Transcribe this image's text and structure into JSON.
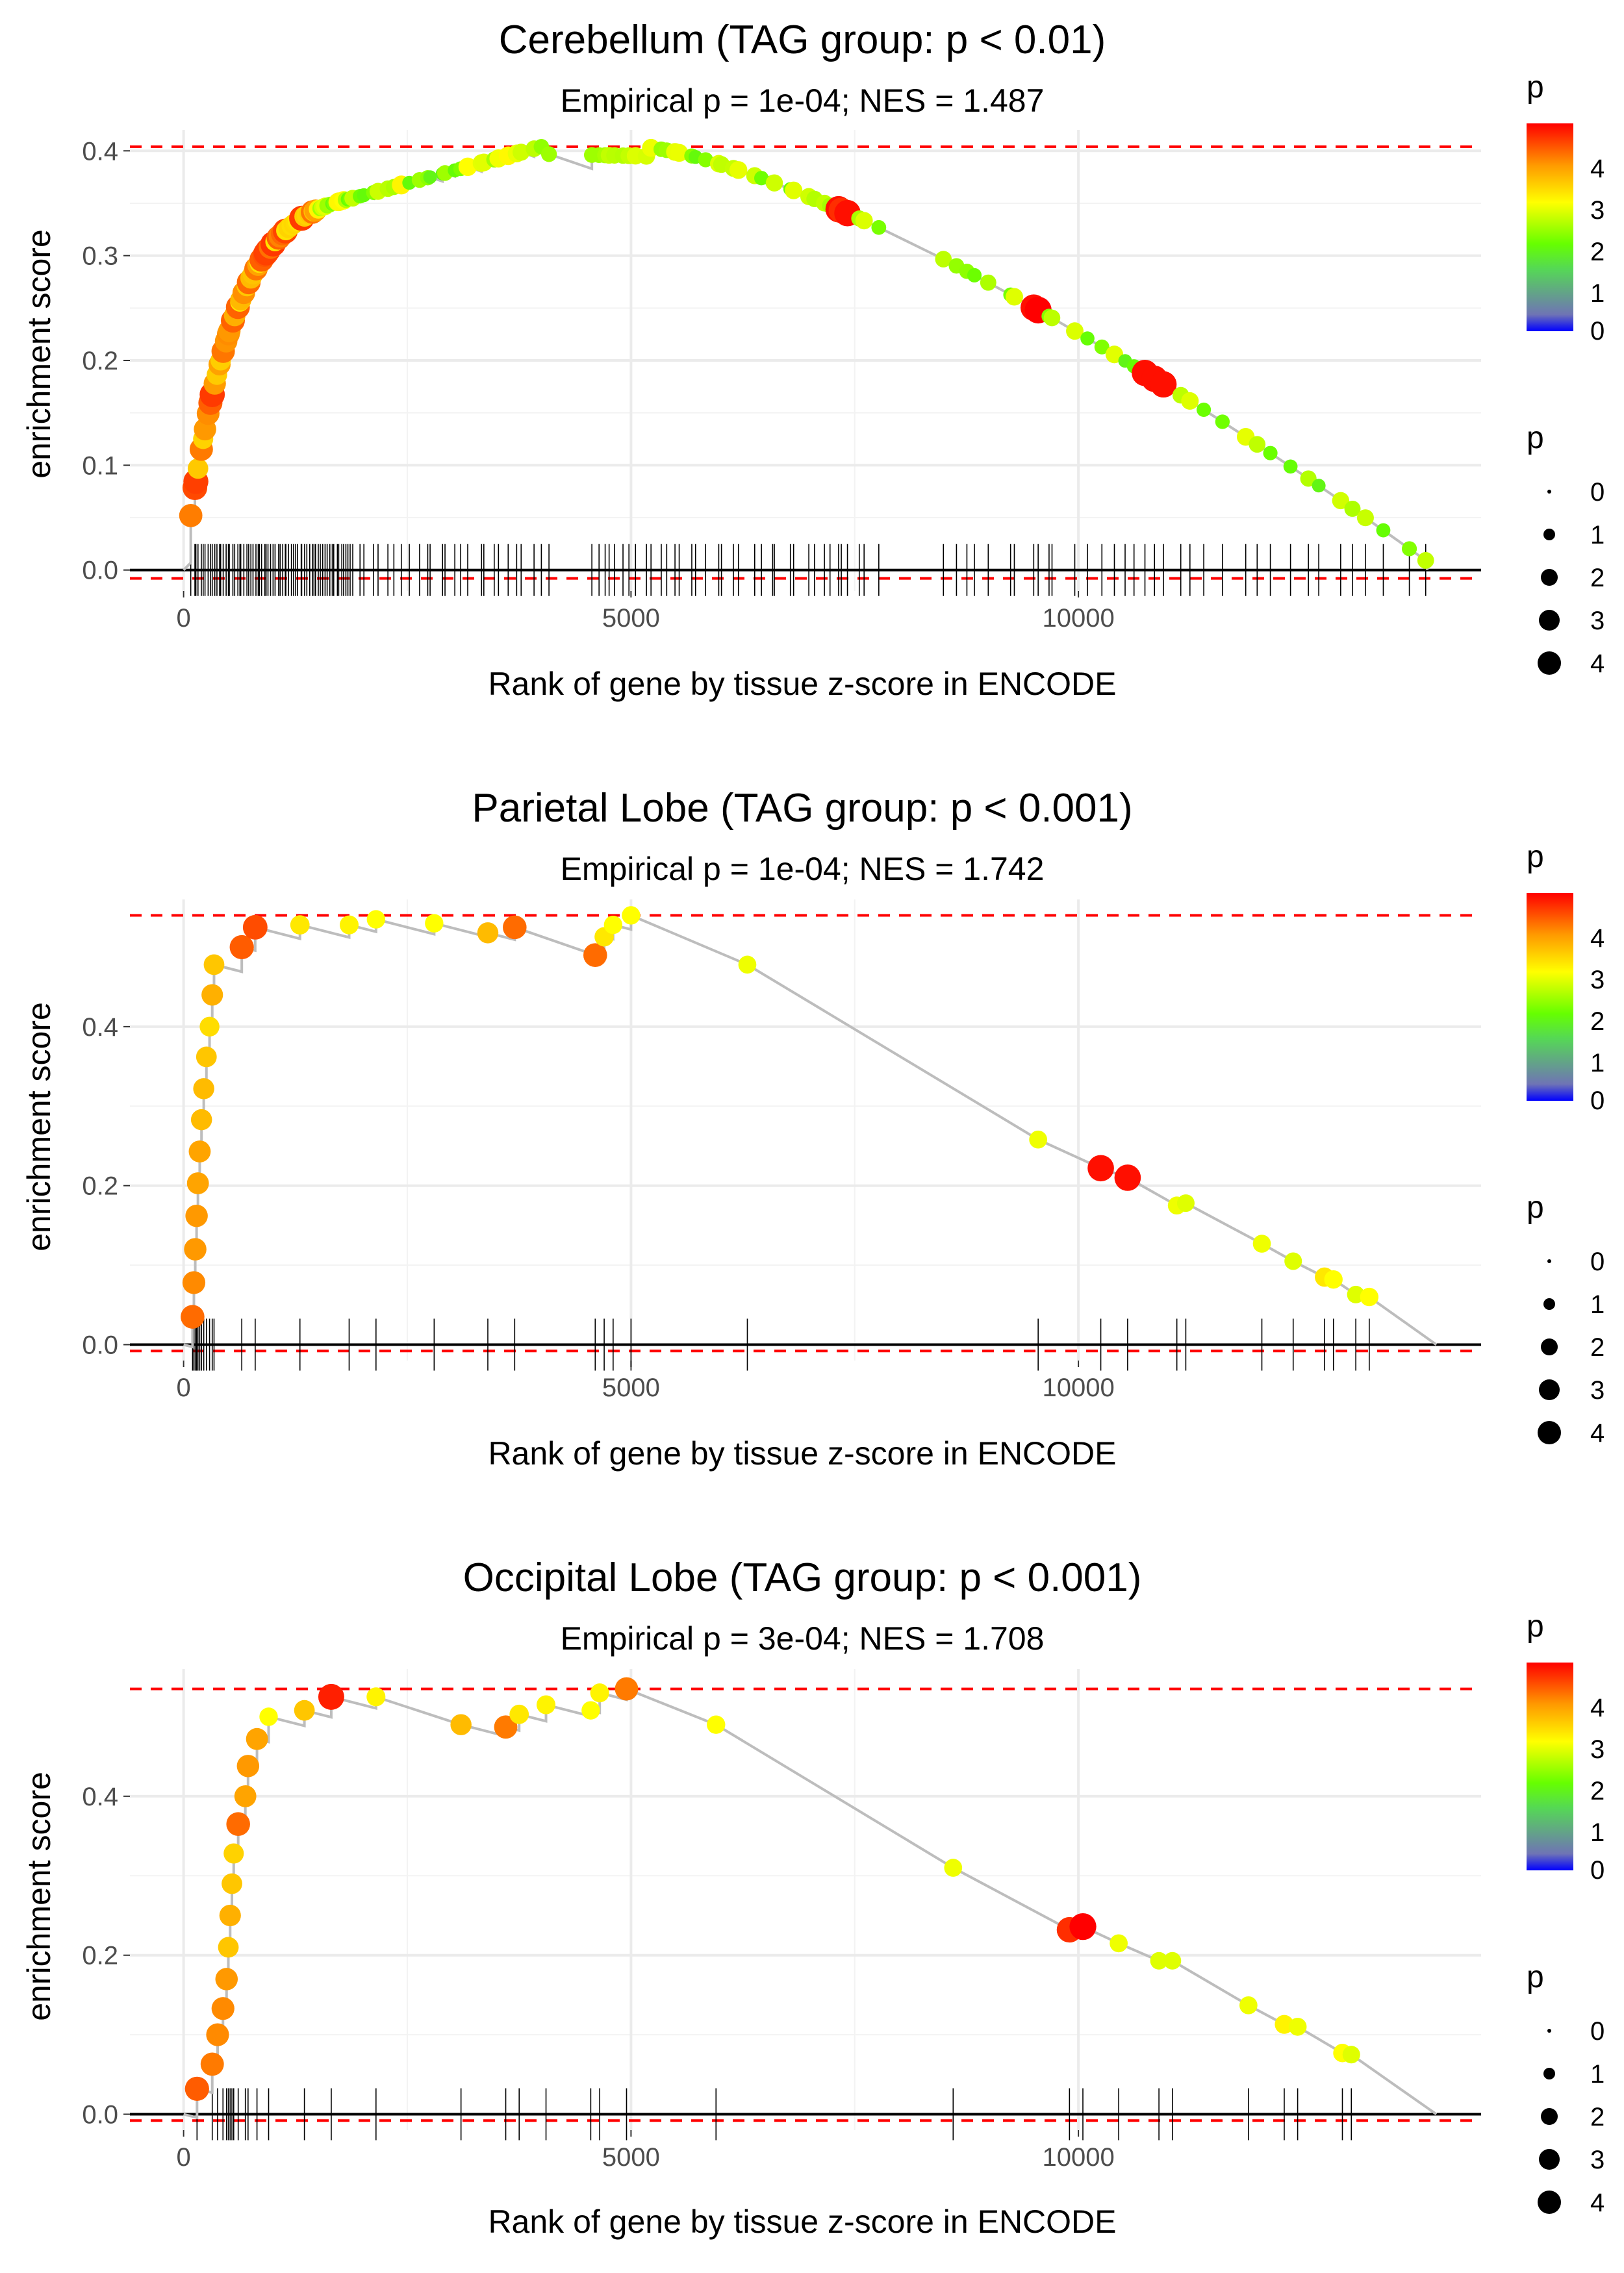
{
  "chart_data": [
    {
      "type": "line",
      "title": "Cerebellum (TAG group: p < 0.01)",
      "subtitle": "Empirical p = 1e-04; NES = 1.487",
      "xlabel": "Rank of gene by tissue z-score in ENCODE",
      "ylabel": "enrichment score",
      "xlim": [
        -600,
        14500
      ],
      "ylim": [
        -0.02,
        0.42
      ],
      "x_ticks": [
        0,
        5000,
        10000
      ],
      "x_tick_labels": [
        "0",
        "5000",
        "10000"
      ],
      "y_ticks": [
        0,
        0.1,
        0.2,
        0.3,
        0.4
      ],
      "y_tick_labels": [
        "0.0",
        "0.1",
        "0.2",
        "0.3",
        "0.4"
      ],
      "max_es": 0.404,
      "min_es": -0.008,
      "gene_set_size": 160,
      "total_genes": 13900,
      "legends": {
        "color": {
          "title": "p",
          "labels": [
            "4",
            "3",
            "2",
            "1",
            "0"
          ],
          "range": [
            0,
            4.9
          ]
        },
        "size": {
          "title": "p",
          "labels": [
            "0",
            "1",
            "2",
            "3",
            "4"
          ]
        }
      }
    },
    {
      "type": "line",
      "title": "Parietal Lobe (TAG group: p < 0.001)",
      "subtitle": "Empirical p = 1e-04; NES = 1.742",
      "xlabel": "Rank of gene by tissue z-score in ENCODE",
      "ylabel": "enrichment score",
      "xlim": [
        -600,
        14500
      ],
      "ylim": [
        -0.02,
        0.56
      ],
      "x_ticks": [
        0,
        5000,
        10000
      ],
      "x_tick_labels": [
        "0",
        "5000",
        "10000"
      ],
      "y_ticks": [
        0,
        0.2,
        0.4
      ],
      "y_tick_labels": [
        "0.0",
        "0.2",
        "0.4"
      ],
      "max_es": 0.54,
      "min_es": -0.008,
      "total_genes": 14000,
      "hits": [
        {
          "rank": 100,
          "es": 0.035,
          "p": 4.2
        },
        {
          "rank": 115,
          "es": 0.078,
          "p": 4.0
        },
        {
          "rank": 130,
          "es": 0.12,
          "p": 3.9
        },
        {
          "rank": 145,
          "es": 0.162,
          "p": 3.9
        },
        {
          "rank": 160,
          "es": 0.203,
          "p": 3.8
        },
        {
          "rank": 180,
          "es": 0.243,
          "p": 3.8
        },
        {
          "rank": 200,
          "es": 0.283,
          "p": 3.6
        },
        {
          "rank": 225,
          "es": 0.322,
          "p": 3.6
        },
        {
          "rank": 255,
          "es": 0.362,
          "p": 3.5
        },
        {
          "rank": 290,
          "es": 0.4,
          "p": 3.3
        },
        {
          "rank": 320,
          "es": 0.44,
          "p": 3.7
        },
        {
          "rank": 340,
          "es": 0.478,
          "p": 3.5
        },
        {
          "rank": 650,
          "es": 0.5,
          "p": 4.3
        },
        {
          "rank": 800,
          "es": 0.525,
          "p": 4.4
        },
        {
          "rank": 1300,
          "es": 0.528,
          "p": 3.2
        },
        {
          "rank": 1850,
          "es": 0.528,
          "p": 3.1
        },
        {
          "rank": 2150,
          "es": 0.535,
          "p": 3.0
        },
        {
          "rank": 2800,
          "es": 0.53,
          "p": 3.0
        },
        {
          "rank": 3400,
          "es": 0.518,
          "p": 3.6
        },
        {
          "rank": 3700,
          "es": 0.525,
          "p": 4.2
        },
        {
          "rank": 4600,
          "es": 0.49,
          "p": 4.2
        },
        {
          "rank": 4700,
          "es": 0.513,
          "p": 3.2
        },
        {
          "rank": 4800,
          "es": 0.528,
          "p": 3.0
        },
        {
          "rank": 5000,
          "es": 0.54,
          "p": 3.0
        },
        {
          "rank": 6300,
          "es": 0.478,
          "p": 2.9
        },
        {
          "rank": 9550,
          "es": 0.258,
          "p": 2.9
        },
        {
          "rank": 10250,
          "es": 0.222,
          "p": 4.8
        },
        {
          "rank": 10550,
          "es": 0.21,
          "p": 4.8
        },
        {
          "rank": 11100,
          "es": 0.175,
          "p": 2.9
        },
        {
          "rank": 11200,
          "es": 0.178,
          "p": 2.8
        },
        {
          "rank": 12050,
          "es": 0.127,
          "p": 2.9
        },
        {
          "rank": 12400,
          "es": 0.105,
          "p": 2.8
        },
        {
          "rank": 12750,
          "es": 0.085,
          "p": 3.2
        },
        {
          "rank": 12850,
          "es": 0.082,
          "p": 3.0
        },
        {
          "rank": 13100,
          "es": 0.063,
          "p": 2.8
        },
        {
          "rank": 13250,
          "es": 0.06,
          "p": 3.0
        }
      ],
      "legends": {
        "color": {
          "title": "p",
          "labels": [
            "4",
            "3",
            "2",
            "1",
            "0"
          ],
          "range": [
            0,
            4.9
          ]
        },
        "size": {
          "title": "p",
          "labels": [
            "0",
            "1",
            "2",
            "3",
            "4"
          ]
        }
      }
    },
    {
      "type": "line",
      "title": "Occipital Lobe (TAG group: p < 0.001)",
      "subtitle": "Empirical p = 3e-04; NES = 1.708",
      "xlabel": "Rank of gene by tissue z-score in ENCODE",
      "ylabel": "enrichment score",
      "xlim": [
        -600,
        14500
      ],
      "ylim": [
        -0.02,
        0.56
      ],
      "x_ticks": [
        0,
        5000,
        10000
      ],
      "x_tick_labels": [
        "0",
        "5000",
        "10000"
      ],
      "y_ticks": [
        0,
        0.2,
        0.4
      ],
      "y_tick_labels": [
        "0.0",
        "0.2",
        "0.4"
      ],
      "max_es": 0.535,
      "min_es": -0.008,
      "total_genes": 14000,
      "hits": [
        {
          "rank": 150,
          "es": 0.032,
          "p": 4.3
        },
        {
          "rank": 320,
          "es": 0.063,
          "p": 4.1
        },
        {
          "rank": 380,
          "es": 0.1,
          "p": 4.0
        },
        {
          "rank": 440,
          "es": 0.133,
          "p": 4.0
        },
        {
          "rank": 480,
          "es": 0.17,
          "p": 3.9
        },
        {
          "rank": 500,
          "es": 0.21,
          "p": 3.5
        },
        {
          "rank": 520,
          "es": 0.25,
          "p": 3.7
        },
        {
          "rank": 540,
          "es": 0.29,
          "p": 3.5
        },
        {
          "rank": 560,
          "es": 0.328,
          "p": 3.4
        },
        {
          "rank": 610,
          "es": 0.365,
          "p": 4.2
        },
        {
          "rank": 690,
          "es": 0.4,
          "p": 3.8
        },
        {
          "rank": 720,
          "es": 0.438,
          "p": 3.9
        },
        {
          "rank": 820,
          "es": 0.472,
          "p": 3.8
        },
        {
          "rank": 950,
          "es": 0.5,
          "p": 3.0
        },
        {
          "rank": 1350,
          "es": 0.508,
          "p": 3.5
        },
        {
          "rank": 1650,
          "es": 0.525,
          "p": 4.7
        },
        {
          "rank": 2150,
          "es": 0.525,
          "p": 3.1
        },
        {
          "rank": 3100,
          "es": 0.49,
          "p": 3.6
        },
        {
          "rank": 3600,
          "es": 0.487,
          "p": 4.1
        },
        {
          "rank": 3750,
          "es": 0.503,
          "p": 3.2
        },
        {
          "rank": 4050,
          "es": 0.515,
          "p": 3.1
        },
        {
          "rank": 4550,
          "es": 0.508,
          "p": 3.0
        },
        {
          "rank": 4650,
          "es": 0.53,
          "p": 3.1
        },
        {
          "rank": 4950,
          "es": 0.535,
          "p": 4.1
        },
        {
          "rank": 5950,
          "es": 0.49,
          "p": 3.0
        },
        {
          "rank": 8600,
          "es": 0.31,
          "p": 2.9
        },
        {
          "rank": 9900,
          "es": 0.232,
          "p": 4.6
        },
        {
          "rank": 10050,
          "es": 0.236,
          "p": 4.9
        },
        {
          "rank": 10450,
          "es": 0.215,
          "p": 2.9
        },
        {
          "rank": 10900,
          "es": 0.193,
          "p": 2.8
        },
        {
          "rank": 11050,
          "es": 0.193,
          "p": 2.8
        },
        {
          "rank": 11900,
          "es": 0.137,
          "p": 2.9
        },
        {
          "rank": 12300,
          "es": 0.113,
          "p": 3.1
        },
        {
          "rank": 12450,
          "es": 0.11,
          "p": 2.9
        },
        {
          "rank": 12950,
          "es": 0.077,
          "p": 3.0
        },
        {
          "rank": 13050,
          "es": 0.075,
          "p": 2.8
        }
      ],
      "legends": {
        "color": {
          "title": "p",
          "labels": [
            "4",
            "3",
            "2",
            "1",
            "0"
          ],
          "range": [
            0,
            4.9
          ]
        },
        "size": {
          "title": "p",
          "labels": [
            "0",
            "1",
            "2",
            "3",
            "4"
          ]
        }
      }
    }
  ]
}
